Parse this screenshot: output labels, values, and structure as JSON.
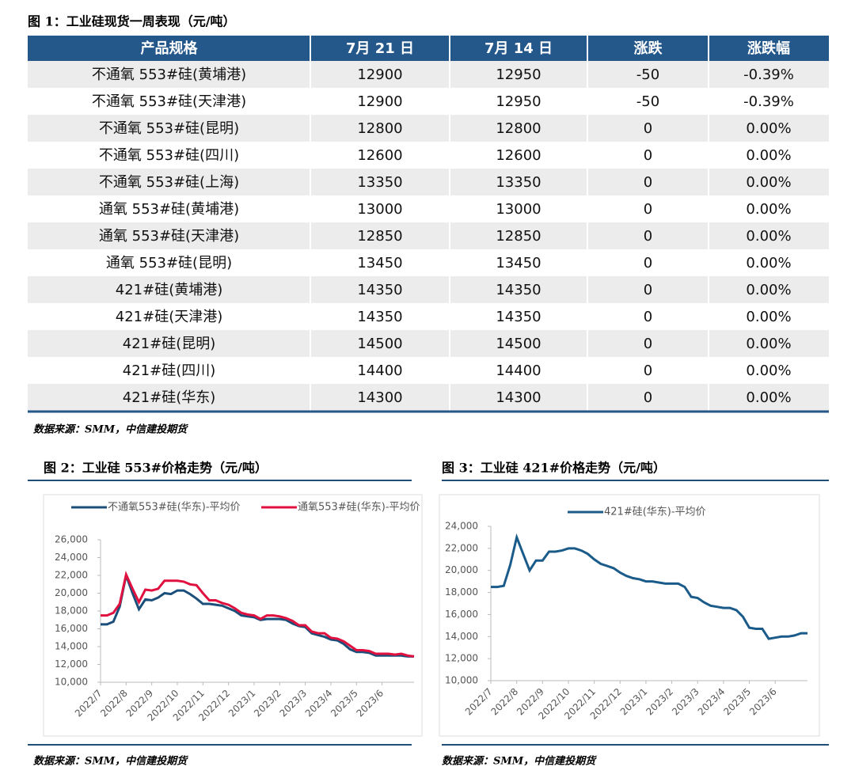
{
  "figure1": {
    "title": "图 1：工业硅现货一周表现（元/吨）",
    "header": [
      "产品规格",
      "7月 21 日",
      "7月 14 日",
      "涨跌",
      "涨跌幅"
    ],
    "rows": [
      [
        "不通氧 553#硅(黄埔港)",
        12900,
        12950,
        -50,
        "-0.39%"
      ],
      [
        "不通氧 553#硅(天津港)",
        12900,
        12950,
        -50,
        "-0.39%"
      ],
      [
        "不通氧 553#硅(昆明)",
        12800,
        12800,
        0,
        "0.00%"
      ],
      [
        "不通氧 553#硅(四川)",
        12600,
        12600,
        0,
        "0.00%"
      ],
      [
        "不通氧 553#硅(上海)",
        13350,
        13350,
        0,
        "0.00%"
      ],
      [
        "通氧 553#硅(黄埔港)",
        13000,
        13000,
        0,
        "0.00%"
      ],
      [
        "通氧 553#硅(天津港)",
        12850,
        12850,
        0,
        "0.00%"
      ],
      [
        "通氧 553#硅(昆明)",
        13450,
        13450,
        0,
        "0.00%"
      ],
      [
        "421#硅(黄埔港)",
        14350,
        14350,
        0,
        "0.00%"
      ],
      [
        "421#硅(天津港)",
        14350,
        14350,
        0,
        "0.00%"
      ],
      [
        "421#硅(昆明)",
        14500,
        14500,
        0,
        "0.00%"
      ],
      [
        "421#硅(四川)",
        14400,
        14400,
        0,
        "0.00%"
      ],
      [
        "421#硅(华东)",
        14300,
        14300,
        0,
        "0.00%"
      ]
    ],
    "source": "数据来源：SMM，中信建投期货"
  },
  "chart_data": [
    {
      "type": "line",
      "title": "图 2：工业硅 553#价格走势（元/吨）",
      "source": "数据来源：SMM，中信建投期货",
      "categories": [
        "2022/7",
        null,
        null,
        null,
        "2022/8",
        null,
        null,
        null,
        "2022/9",
        null,
        null,
        null,
        "2022/10",
        null,
        null,
        null,
        "2022/11",
        null,
        null,
        null,
        "2022/12",
        null,
        null,
        null,
        "2023/1",
        null,
        null,
        null,
        "2023/2",
        null,
        null,
        null,
        "2023/3",
        null,
        null,
        null,
        "2023/4",
        null,
        null,
        null,
        "2023/5",
        null,
        null,
        null,
        "2023/6",
        null,
        null,
        null,
        null,
        null
      ],
      "series": [
        {
          "name": "不通氧553#硅(华东)-平均价",
          "color": "#1b4f7a",
          "values": [
            16500,
            16500,
            16800,
            18500,
            22000,
            20000,
            18200,
            19300,
            19200,
            19500,
            20000,
            19900,
            20300,
            20300,
            19900,
            19400,
            18800,
            18800,
            18700,
            18600,
            18300,
            18000,
            17500,
            17400,
            17300,
            17000,
            17100,
            17100,
            17100,
            17000,
            16600,
            16300,
            16200,
            15500,
            15300,
            15100,
            14800,
            14700,
            14300,
            13700,
            13400,
            13400,
            13300,
            13000,
            13000,
            13000,
            13000,
            13000,
            12900,
            12900
          ]
        },
        {
          "name": "通氧553#硅(华东)-平均价",
          "color": "#e0103f",
          "values": [
            17500,
            17500,
            17800,
            18800,
            22100,
            20500,
            19000,
            20400,
            20300,
            20500,
            21400,
            21400,
            21400,
            21300,
            21000,
            20900,
            20000,
            19200,
            19200,
            18900,
            18700,
            18300,
            17800,
            17600,
            17500,
            17100,
            17500,
            17500,
            17400,
            17200,
            16900,
            16400,
            16400,
            15700,
            15500,
            15500,
            15000,
            14900,
            14600,
            14100,
            13600,
            13600,
            13500,
            13200,
            13200,
            13200,
            13100,
            13200,
            13000,
            12900
          ]
        }
      ],
      "ylim": [
        10000,
        26000
      ],
      "yticks": [
        {
          "value": 10000,
          "label": "10,000"
        },
        {
          "value": 12000,
          "label": "12,000"
        },
        {
          "value": 14000,
          "label": "14,000"
        },
        {
          "value": 16000,
          "label": "16,000"
        },
        {
          "value": 18000,
          "label": "18,000"
        },
        {
          "value": 20000,
          "label": "20,000"
        },
        {
          "value": 22000,
          "label": "22,000"
        },
        {
          "value": 24000,
          "label": "24,000"
        },
        {
          "value": 26000,
          "label": "26,000"
        }
      ],
      "grid": false
    },
    {
      "type": "line",
      "title": "图 3：工业硅 421#价格走势（元/吨）",
      "source": "数据来源：SMM，中信建投期货",
      "categories": [
        "2022/7",
        null,
        null,
        null,
        "2022/8",
        null,
        null,
        null,
        "2022/9",
        null,
        null,
        null,
        "2022/10",
        null,
        null,
        null,
        "2022/11",
        null,
        null,
        null,
        "2022/12",
        null,
        null,
        null,
        "2023/1",
        null,
        null,
        null,
        "2023/2",
        null,
        null,
        null,
        "2023/3",
        null,
        null,
        null,
        "2023/4",
        null,
        null,
        null,
        "2023/5",
        null,
        null,
        null,
        "2023/6",
        null,
        null,
        null,
        null,
        null
      ],
      "series": [
        {
          "name": "421#硅(华东)-平均价",
          "color": "#1a5b8a",
          "values": [
            18500,
            18500,
            18600,
            20500,
            23000,
            21500,
            20000,
            20900,
            20900,
            21700,
            21700,
            21800,
            22000,
            22000,
            21800,
            21500,
            21000,
            20600,
            20400,
            20200,
            19800,
            19500,
            19300,
            19200,
            19000,
            19000,
            18900,
            18800,
            18800,
            18800,
            18500,
            17600,
            17500,
            17100,
            16800,
            16700,
            16600,
            16600,
            16400,
            15800,
            14800,
            14700,
            14700,
            13800,
            13900,
            14000,
            14000,
            14100,
            14300,
            14300
          ]
        }
      ],
      "ylim": [
        10000,
        24000
      ],
      "yticks": [
        {
          "value": 10000,
          "label": "10,000"
        },
        {
          "value": 12000,
          "label": "12,000"
        },
        {
          "value": 14000,
          "label": "14,000"
        },
        {
          "value": 16000,
          "label": "16,000"
        },
        {
          "value": 18000,
          "label": "18,000"
        },
        {
          "value": 20000,
          "label": "20,000"
        },
        {
          "value": 22000,
          "label": "22,000"
        },
        {
          "value": 24000,
          "label": "24,000"
        }
      ],
      "grid": false
    }
  ]
}
